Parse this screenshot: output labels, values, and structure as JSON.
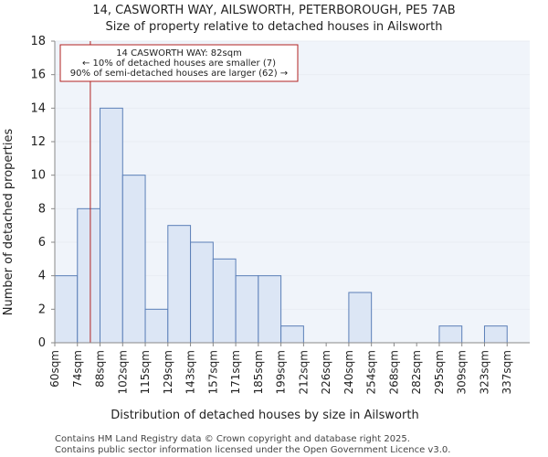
{
  "chart_data": {
    "type": "bar",
    "title": "14, CASWORTH WAY, AILSWORTH, PETERBOROUGH, PE5 7AB",
    "subtitle": "Size of property relative to detached houses in Ailsworth",
    "xlabel": "Distribution of detached houses by size in Ailsworth",
    "ylabel": "Number of detached properties",
    "ylim": [
      0,
      18
    ],
    "yticks": [
      0,
      2,
      4,
      6,
      8,
      10,
      12,
      14,
      16,
      18
    ],
    "bin_edges": [
      60,
      74,
      88,
      102,
      115,
      129,
      143,
      157,
      171,
      185,
      199,
      212,
      226,
      240,
      254,
      268,
      282,
      295,
      309,
      323,
      337,
      351
    ],
    "categories": [
      "60sqm",
      "74sqm",
      "88sqm",
      "102sqm",
      "115sqm",
      "129sqm",
      "143sqm",
      "157sqm",
      "171sqm",
      "185sqm",
      "199sqm",
      "212sqm",
      "226sqm",
      "240sqm",
      "254sqm",
      "268sqm",
      "282sqm",
      "295sqm",
      "309sqm",
      "323sqm",
      "337sqm"
    ],
    "values": [
      4,
      8,
      14,
      10,
      2,
      7,
      6,
      5,
      4,
      4,
      1,
      0,
      0,
      3,
      0,
      0,
      0,
      1,
      0,
      1,
      0
    ],
    "marker": {
      "value": 82,
      "color": "#b22222",
      "label_lines": [
        "14 CASWORTH WAY: 82sqm",
        "← 10% of detached houses are smaller (7)",
        "90% of semi-detached houses are larger (62) →"
      ]
    },
    "colors": {
      "bar_fill": "#dce6f5",
      "bar_edge": "#5b7fb8",
      "background": "#f0f4fa"
    }
  },
  "footer": {
    "line1": "Contains HM Land Registry data © Crown copyright and database right 2025.",
    "line2": "Contains public sector information licensed under the Open Government Licence v3.0."
  }
}
